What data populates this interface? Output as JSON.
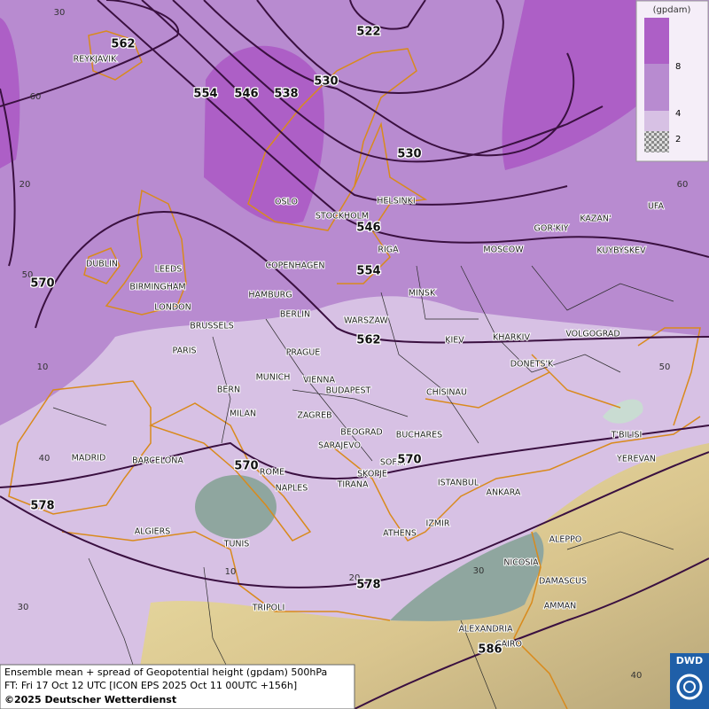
{
  "legend": {
    "unit": "(gpdam)",
    "ticks": [
      8,
      4,
      2
    ]
  },
  "contour_labels": [
    562,
    522,
    554,
    546,
    538,
    530,
    530,
    546,
    554,
    570,
    562,
    570,
    570,
    578,
    578,
    586
  ],
  "cities": [
    "REYKJAVIK",
    "OSLO",
    "STOCKHOLM",
    "HELSINKI",
    "DUBLIN",
    "LEEDS",
    "BIRMINGHAM",
    "LONDON",
    "COPENHAGEN",
    "RIGA",
    "HAMBURG",
    "MINSK",
    "MOSCOW",
    "GOR'KIY",
    "KAZAN'",
    "UFA",
    "KUYBYSKEV",
    "BERLIN",
    "WARSZAW",
    "BRUSSELS",
    "KIEV",
    "KHARKIV",
    "VOLGOGRAD",
    "PARIS",
    "PRAGUE",
    "DONETS'K",
    "MUNICH",
    "VIENNA",
    "BERN",
    "BUDAPEST",
    "CHISINAU",
    "MILAN",
    "ZAGREB",
    "BEOGRAD",
    "BUCHARES",
    "T'BILISI",
    "SARAJEVO",
    "MADRID",
    "BARCELONA",
    "ROME",
    "SOFIA",
    "SKOPJE",
    "YEREVAN",
    "NAPLES",
    "TIRANA",
    "ISTANBUL",
    "ANKARA",
    "ALGIERS",
    "ATHENS",
    "IZMIR",
    "TUNIS",
    "ALEPPO",
    "NICOSIA",
    "DAMASCUS",
    "TRIPOLI",
    "AMMAN",
    "ALEXANDRIA",
    "CAIRO"
  ],
  "grid_labels": [
    30,
    60,
    20,
    50,
    10,
    40,
    30,
    10,
    20,
    30,
    40,
    50,
    60
  ],
  "footer": {
    "line1": "Ensemble mean + spread of Geopotential height (gpdam) 500hPa",
    "line2": "FT: Fri 17 Oct 12 UTC [ICON EPS 2025 Oct 11 00UTC +156h]",
    "line3": "©2025 Deutscher Wetterdienst"
  },
  "logo": "DWD"
}
